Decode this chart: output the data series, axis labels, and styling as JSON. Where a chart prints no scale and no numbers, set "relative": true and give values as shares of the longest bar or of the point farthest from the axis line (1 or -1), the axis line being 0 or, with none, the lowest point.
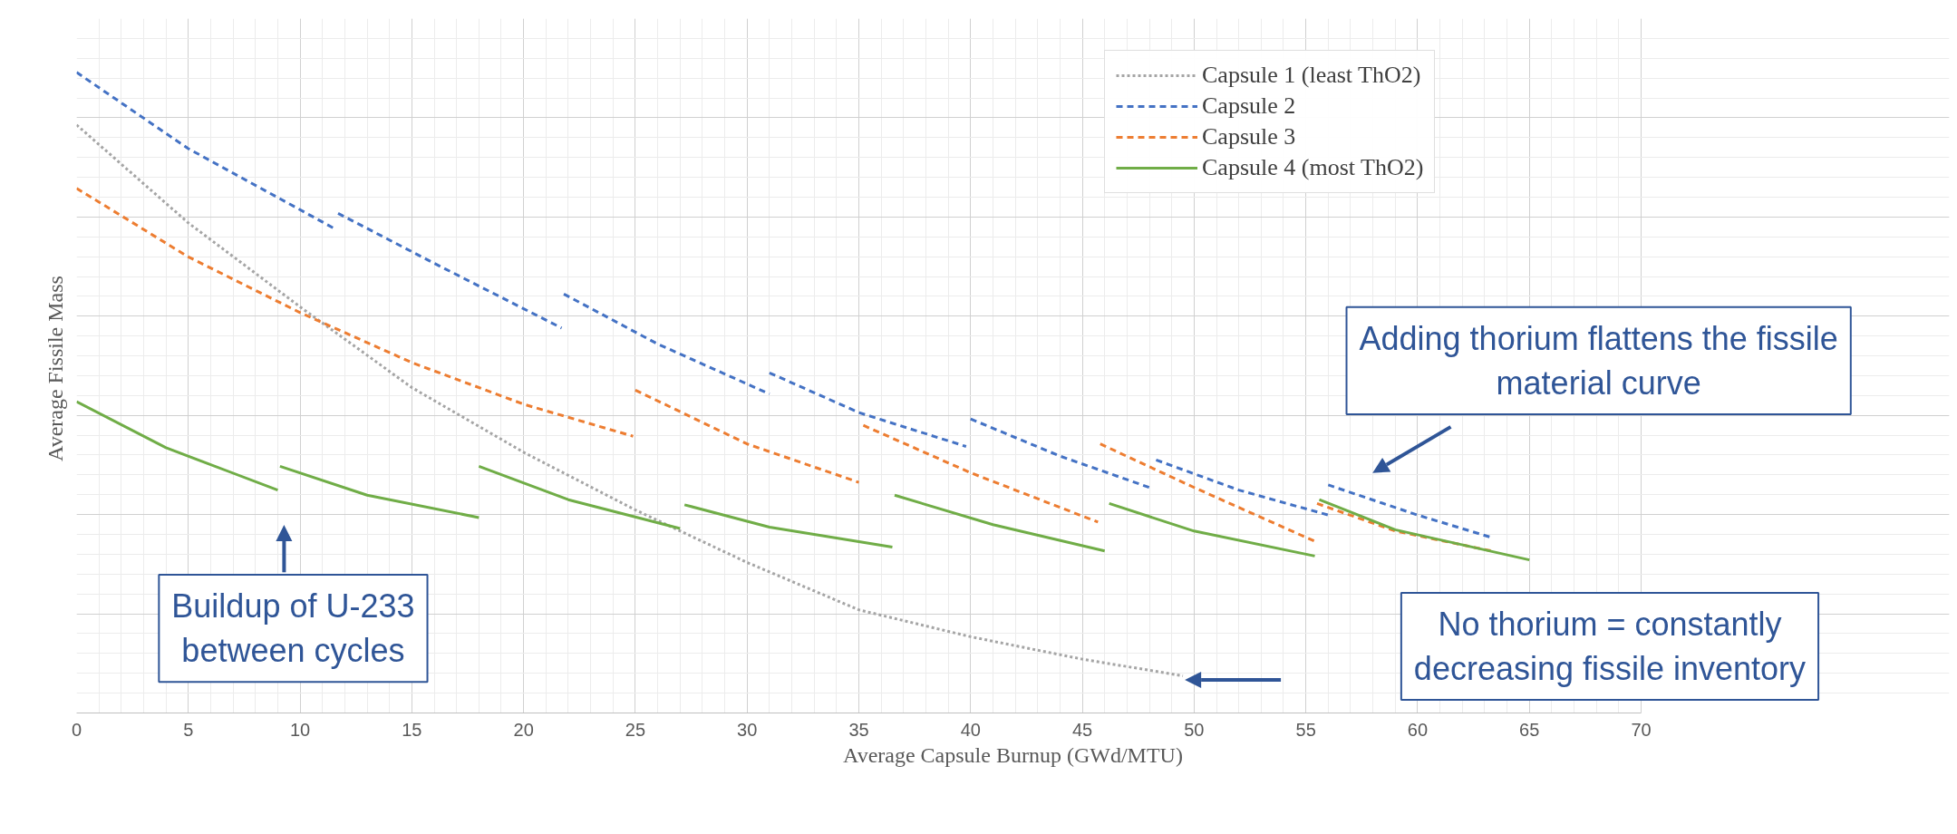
{
  "chart_data": {
    "type": "line",
    "relative": true,
    "xlabel": "Average Capsule Burnup (GWd/MTU)",
    "ylabel": "Average  Fissile Mass",
    "xlim": [
      0,
      70
    ],
    "xticks": [
      0,
      5,
      10,
      15,
      20,
      25,
      30,
      35,
      40,
      45,
      50,
      55,
      60,
      65,
      70
    ],
    "grid": true,
    "legend": "top right",
    "tick_labels": "x",
    "series": [
      {
        "name": "Capsule 1 (least ThO2)",
        "color": "#a5a5a5",
        "line_style": "dotted",
        "x": [
          0,
          5,
          10,
          15,
          20,
          25,
          30,
          35,
          40,
          45,
          49.5
        ],
        "values": [
          0.918,
          0.765,
          0.634,
          0.508,
          0.407,
          0.317,
          0.235,
          0.161,
          0.119,
          0.084,
          0.058
        ]
      },
      {
        "name": "Capsule 2",
        "color": "#4472c4",
        "line_style": "dashed",
        "x": [
          0,
          5,
          11.6,
          null,
          11.7,
          16,
          21.7,
          null,
          21.8,
          26,
          31,
          null,
          31,
          35,
          39.8,
          null,
          40,
          44,
          48,
          null,
          48.3,
          52,
          56,
          null,
          56,
          60,
          63.3
        ],
        "values": [
          1.0,
          0.881,
          0.755,
          null,
          0.78,
          0.702,
          0.601,
          null,
          0.654,
          0.576,
          0.498,
          null,
          0.531,
          0.469,
          0.416,
          null,
          0.459,
          0.401,
          0.352,
          null,
          0.395,
          0.348,
          0.309,
          null,
          0.356,
          0.309,
          0.274
        ]
      },
      {
        "name": "Capsule 3",
        "color": "#ed7d31",
        "line_style": "dashed",
        "x": [
          0,
          5,
          10,
          15,
          20,
          24.9,
          null,
          25,
          30,
          35,
          null,
          35.2,
          40,
          45.7,
          null,
          45.8,
          50,
          55.4,
          null,
          55.5,
          59,
          63.3
        ],
        "values": [
          0.819,
          0.712,
          0.625,
          0.547,
          0.482,
          0.432,
          null,
          0.504,
          0.42,
          0.36,
          null,
          0.449,
          0.375,
          0.298,
          null,
          0.42,
          0.352,
          0.268,
          null,
          0.327,
          0.284,
          0.253
        ]
      },
      {
        "name": "Capsule 4 (most ThO2)",
        "color": "#70ad47",
        "line_style": "solid",
        "x": [
          0,
          4,
          9,
          null,
          9.1,
          13,
          18,
          null,
          18,
          22,
          27,
          null,
          27.2,
          31,
          36.5,
          null,
          36.6,
          41,
          46,
          null,
          46.2,
          50,
          55.4,
          null,
          55.6,
          59,
          65
        ],
        "values": [
          0.486,
          0.414,
          0.348,
          null,
          0.385,
          0.34,
          0.305,
          null,
          0.385,
          0.333,
          0.288,
          null,
          0.325,
          0.29,
          0.259,
          null,
          0.34,
          0.294,
          0.253,
          null,
          0.327,
          0.284,
          0.245,
          null,
          0.333,
          0.286,
          0.239
        ]
      }
    ],
    "annotations": [
      "Buildup of U-233\nbetween cycles",
      "Adding thorium flattens the fissile\nmaterial curve",
      "No thorium = constantly\ndecreasing fissile inventory"
    ]
  }
}
